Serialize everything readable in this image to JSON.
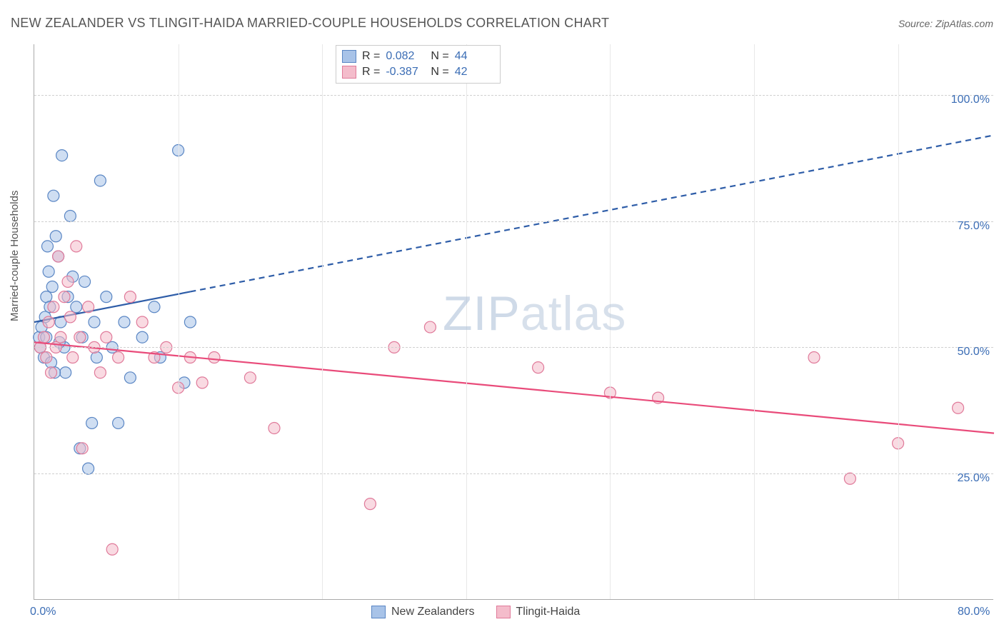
{
  "header": {
    "title": "NEW ZEALANDER VS TLINGIT-HAIDA MARRIED-COUPLE HOUSEHOLDS CORRELATION CHART",
    "source_prefix": "Source: ",
    "source": "ZipAtlas.com"
  },
  "chart": {
    "type": "scatter-with-regression",
    "ylabel": "Married-couple Households",
    "xlim": [
      0,
      80
    ],
    "ylim": [
      0,
      110
    ],
    "x_ticks": [
      0,
      80
    ],
    "x_tick_labels": [
      "0.0%",
      "80.0%"
    ],
    "y_ticks": [
      25,
      50,
      75,
      100
    ],
    "y_tick_labels": [
      "25.0%",
      "50.0%",
      "75.0%",
      "100.0%"
    ],
    "grid_color": "#d0d0d0",
    "vgrid_positions": [
      12,
      24,
      36,
      48,
      60,
      72
    ],
    "background_color": "#ffffff",
    "axis_color": "#aaaaaa",
    "tick_label_color": "#3b6db5",
    "marker_radius": 8,
    "marker_stroke_width": 1.2,
    "line_width": 2.2,
    "watermark": "ZIPatlas",
    "watermark_color": "#a8bdd6",
    "series": [
      {
        "name": "New Zealanders",
        "fill_color": "#a8c3e8",
        "stroke_color": "#5a86c4",
        "fill_opacity": 0.55,
        "stats": {
          "R": "0.082",
          "N": "44"
        },
        "regression": {
          "x1": 0,
          "y1": 55,
          "x2": 80,
          "y2": 92,
          "solid_until_x": 13,
          "dashed": true,
          "line_color": "#2e5da8"
        },
        "points": [
          [
            0.4,
            52
          ],
          [
            0.5,
            50
          ],
          [
            0.6,
            54
          ],
          [
            0.8,
            48
          ],
          [
            0.9,
            56
          ],
          [
            1.0,
            60
          ],
          [
            1.0,
            52
          ],
          [
            1.1,
            70
          ],
          [
            1.2,
            65
          ],
          [
            1.3,
            58
          ],
          [
            1.4,
            47
          ],
          [
            1.5,
            62
          ],
          [
            1.6,
            80
          ],
          [
            1.8,
            72
          ],
          [
            2.0,
            68
          ],
          [
            2.2,
            55
          ],
          [
            2.3,
            88
          ],
          [
            2.5,
            50
          ],
          [
            2.6,
            45
          ],
          [
            2.8,
            60
          ],
          [
            3.0,
            76
          ],
          [
            3.2,
            64
          ],
          [
            3.5,
            58
          ],
          [
            3.8,
            30
          ],
          [
            4.0,
            52
          ],
          [
            4.2,
            63
          ],
          [
            4.5,
            26
          ],
          [
            4.8,
            35
          ],
          [
            5.0,
            55
          ],
          [
            5.2,
            48
          ],
          [
            5.5,
            83
          ],
          [
            6.0,
            60
          ],
          [
            6.5,
            50
          ],
          [
            7.0,
            35
          ],
          [
            7.5,
            55
          ],
          [
            8.0,
            44
          ],
          [
            9.0,
            52
          ],
          [
            10.0,
            58
          ],
          [
            10.5,
            48
          ],
          [
            12.0,
            89
          ],
          [
            12.5,
            43
          ],
          [
            13.0,
            55
          ],
          [
            1.7,
            45
          ],
          [
            2.1,
            51
          ]
        ]
      },
      {
        "name": "Tlingit-Haida",
        "fill_color": "#f4bccb",
        "stroke_color": "#e07a9a",
        "fill_opacity": 0.55,
        "stats": {
          "R": "-0.387",
          "N": "42"
        },
        "regression": {
          "x1": 0,
          "y1": 51,
          "x2": 80,
          "y2": 33,
          "solid_until_x": 80,
          "dashed": false,
          "line_color": "#e94b7a"
        },
        "points": [
          [
            0.5,
            50
          ],
          [
            0.8,
            52
          ],
          [
            1.0,
            48
          ],
          [
            1.2,
            55
          ],
          [
            1.4,
            45
          ],
          [
            1.6,
            58
          ],
          [
            1.8,
            50
          ],
          [
            2.0,
            68
          ],
          [
            2.2,
            52
          ],
          [
            2.5,
            60
          ],
          [
            2.8,
            63
          ],
          [
            3.0,
            56
          ],
          [
            3.2,
            48
          ],
          [
            3.5,
            70
          ],
          [
            3.8,
            52
          ],
          [
            4.0,
            30
          ],
          [
            4.5,
            58
          ],
          [
            5.0,
            50
          ],
          [
            5.5,
            45
          ],
          [
            6.0,
            52
          ],
          [
            6.5,
            10
          ],
          [
            7.0,
            48
          ],
          [
            8.0,
            60
          ],
          [
            9.0,
            55
          ],
          [
            10.0,
            48
          ],
          [
            11.0,
            50
          ],
          [
            12.0,
            42
          ],
          [
            13.0,
            48
          ],
          [
            14.0,
            43
          ],
          [
            15.0,
            48
          ],
          [
            18.0,
            44
          ],
          [
            20.0,
            34
          ],
          [
            28.0,
            19
          ],
          [
            30.0,
            50
          ],
          [
            33.0,
            54
          ],
          [
            42.0,
            46
          ],
          [
            48.0,
            41
          ],
          [
            52.0,
            40
          ],
          [
            65.0,
            48
          ],
          [
            68.0,
            24
          ],
          [
            72.0,
            31
          ],
          [
            77.0,
            38
          ]
        ]
      }
    ],
    "legend": {
      "items": [
        "New Zealanders",
        "Tlingit-Haida"
      ]
    }
  }
}
